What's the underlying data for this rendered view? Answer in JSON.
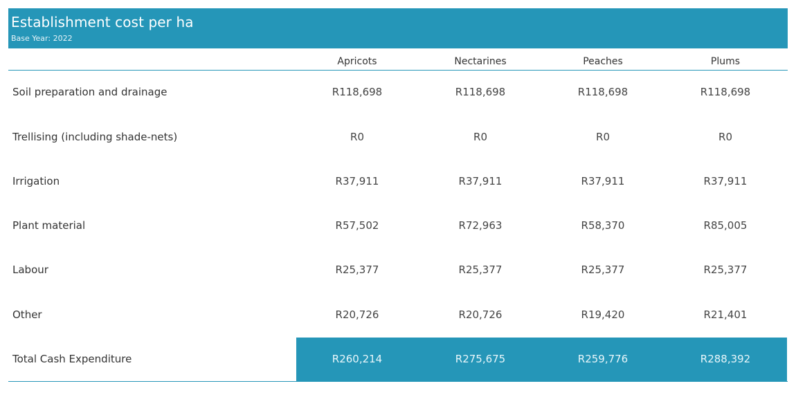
{
  "header": {
    "title": "Establishment cost per ha",
    "subtitle": "Base Year: 2022"
  },
  "colors": {
    "accent": "#2596b8"
  },
  "chart_data": {
    "type": "table",
    "title": "Establishment cost per ha",
    "subtitle": "Base Year: 2022",
    "columns": [
      "Apricots",
      "Nectarines",
      "Peaches",
      "Plums"
    ],
    "rows": [
      {
        "label": "Soil preparation and drainage",
        "values": [
          "R118,698",
          "R118,698",
          "R118,698",
          "R118,698"
        ]
      },
      {
        "label": "Trellising (including shade-nets)",
        "values": [
          "R0",
          "R0",
          "R0",
          "R0"
        ]
      },
      {
        "label": "Irrigation",
        "values": [
          "R37,911",
          "R37,911",
          "R37,911",
          "R37,911"
        ]
      },
      {
        "label": "Plant material",
        "values": [
          "R57,502",
          "R72,963",
          "R58,370",
          "R85,005"
        ]
      },
      {
        "label": "Labour",
        "values": [
          "R25,377",
          "R25,377",
          "R25,377",
          "R25,377"
        ]
      },
      {
        "label": "Other",
        "values": [
          "R20,726",
          "R20,726",
          "R19,420",
          "R21,401"
        ]
      },
      {
        "label": "Total Cash Expenditure",
        "values": [
          "R260,214",
          "R275,675",
          "R259,776",
          "R288,392"
        ]
      }
    ]
  }
}
